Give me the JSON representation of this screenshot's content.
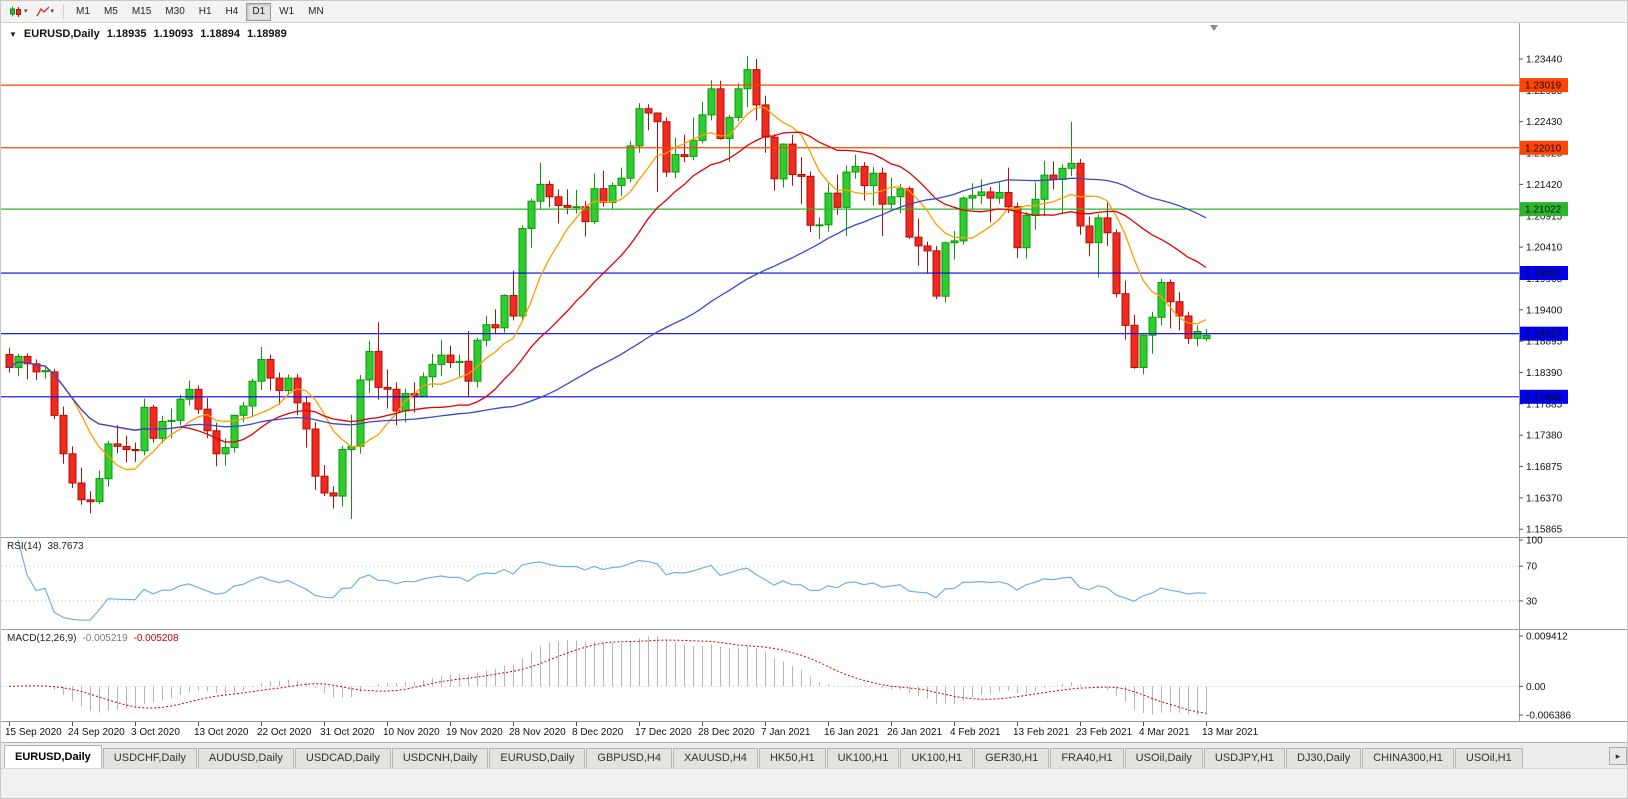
{
  "toolbar": {
    "timeframes": [
      {
        "label": "M1",
        "active": false
      },
      {
        "label": "M5",
        "active": false
      },
      {
        "label": "M15",
        "active": false
      },
      {
        "label": "M30",
        "active": false
      },
      {
        "label": "H1",
        "active": false
      },
      {
        "label": "H4",
        "active": false
      },
      {
        "label": "D1",
        "active": true
      },
      {
        "label": "W1",
        "active": false
      },
      {
        "label": "MN",
        "active": false
      }
    ]
  },
  "chart_title": {
    "symbol": "EURUSD,Daily",
    "open": "1.18935",
    "high": "1.19093",
    "low": "1.18894",
    "close": "1.18989"
  },
  "rsi": {
    "name": "RSI(14)",
    "value": "38.7673",
    "period": 14,
    "levels": [
      "100",
      "70",
      "30"
    ],
    "color": "#6fb1e3"
  },
  "macd": {
    "name": "MACD(12,26,9)",
    "main_value": "-0.005219",
    "signal_value": "-0.005208",
    "axis_labels": [
      "0.009412",
      "0.00",
      "-0.006386"
    ],
    "fast": 12,
    "slow": 26,
    "signal": 9,
    "histogram_color": "#b6b6b6",
    "signal_color": "#d40000"
  },
  "price_axis_ticks": [
    "1.23440",
    "1.22935",
    "1.22430",
    "1.21925",
    "1.21420",
    "1.20915",
    "1.20410",
    "1.19905",
    "1.19400",
    "1.18895",
    "1.18390",
    "1.17885",
    "1.17380",
    "1.16875",
    "1.16370",
    "1.15865"
  ],
  "hlines": [
    {
      "price": "1.23019",
      "color": "#ff4500"
    },
    {
      "price": "1.22010",
      "color": "#ff4500"
    },
    {
      "price": "1.21022",
      "color": "#2eb52e"
    },
    {
      "price": "1.19992",
      "color": "#0000ee"
    },
    {
      "price": "1.19015",
      "color": "#0000ee"
    },
    {
      "price": "1.17998",
      "color": "#0000ee"
    }
  ],
  "chart_data": {
    "type": "candlestick",
    "symbol": "EURUSD",
    "timeframe": "Daily",
    "price_range": {
      "top": 1.2402,
      "bottom": 1.1574
    },
    "up_color": "#2fcc2f",
    "up_border": "#0b9a0b",
    "down_color": "#f02a1e",
    "down_border": "#b50e05",
    "moving_averages": [
      {
        "period": 8,
        "color": "#ff9c00"
      },
      {
        "period": 20,
        "color": "#e00000"
      },
      {
        "period": 55,
        "color": "#3a49c8"
      }
    ],
    "x_labels": [
      {
        "i": 0,
        "t": "15 Sep 2020"
      },
      {
        "i": 7,
        "t": "24 Sep 2020"
      },
      {
        "i": 14,
        "t": "3 Oct 2020"
      },
      {
        "i": 21,
        "t": "13 Oct 2020"
      },
      {
        "i": 28,
        "t": "22 Oct 2020"
      },
      {
        "i": 35,
        "t": "31 Oct 2020"
      },
      {
        "i": 42,
        "t": "10 Nov 2020"
      },
      {
        "i": 49,
        "t": "19 Nov 2020"
      },
      {
        "i": 56,
        "t": "28 Nov 2020"
      },
      {
        "i": 63,
        "t": "8 Dec 2020"
      },
      {
        "i": 70,
        "t": "17 Dec 2020"
      },
      {
        "i": 77,
        "t": "28 Dec 2020"
      },
      {
        "i": 84,
        "t": "7 Jan 2021"
      },
      {
        "i": 91,
        "t": "16 Jan 2021"
      },
      {
        "i": 98,
        "t": "26 Jan 2021"
      },
      {
        "i": 105,
        "t": "4 Feb 2021"
      },
      {
        "i": 112,
        "t": "13 Feb 2021"
      },
      {
        "i": 119,
        "t": "23 Feb 2021"
      },
      {
        "i": 126,
        "t": "4 Mar 2021"
      },
      {
        "i": 133,
        "t": "13 Mar 2021"
      }
    ],
    "candles": [
      [
        1.1868,
        1.1878,
        1.1839,
        1.1847
      ],
      [
        1.1847,
        1.1869,
        1.1833,
        1.1865
      ],
      [
        1.1865,
        1.187,
        1.1828,
        1.1853
      ],
      [
        1.1853,
        1.186,
        1.1827,
        1.184
      ],
      [
        1.184,
        1.185,
        1.1829,
        1.1842
      ],
      [
        1.184,
        1.1845,
        1.1764,
        1.177
      ],
      [
        1.177,
        1.1784,
        1.1692,
        1.1708
      ],
      [
        1.1708,
        1.172,
        1.1653,
        1.1661
      ],
      [
        1.1661,
        1.1686,
        1.1626,
        1.1634
      ],
      [
        1.1634,
        1.1648,
        1.1612,
        1.1631
      ],
      [
        1.1631,
        1.1681,
        1.1627,
        1.1668
      ],
      [
        1.1668,
        1.1729,
        1.1655,
        1.1724
      ],
      [
        1.1724,
        1.1754,
        1.1709,
        1.172
      ],
      [
        1.172,
        1.1737,
        1.1694,
        1.1715
      ],
      [
        1.1715,
        1.1726,
        1.1695,
        1.1713
      ],
      [
        1.1713,
        1.1797,
        1.1706,
        1.1783
      ],
      [
        1.1783,
        1.1787,
        1.1726,
        1.1733
      ],
      [
        1.1733,
        1.1769,
        1.1725,
        1.176
      ],
      [
        1.176,
        1.1781,
        1.1733,
        1.1762
      ],
      [
        1.1762,
        1.1803,
        1.1754,
        1.1796
      ],
      [
        1.1796,
        1.1826,
        1.1786,
        1.1812
      ],
      [
        1.1812,
        1.1818,
        1.1772,
        1.178
      ],
      [
        1.178,
        1.1798,
        1.1733,
        1.1745
      ],
      [
        1.1745,
        1.1758,
        1.1688,
        1.1708
      ],
      [
        1.1708,
        1.1733,
        1.1689,
        1.1718
      ],
      [
        1.1718,
        1.1771,
        1.171,
        1.177
      ],
      [
        1.177,
        1.1792,
        1.1759,
        1.1785
      ],
      [
        1.1785,
        1.1829,
        1.1769,
        1.1825
      ],
      [
        1.1825,
        1.188,
        1.1811,
        1.186
      ],
      [
        1.186,
        1.1868,
        1.181,
        1.183
      ],
      [
        1.183,
        1.1839,
        1.1787,
        1.181
      ],
      [
        1.181,
        1.1836,
        1.1802,
        1.183
      ],
      [
        1.183,
        1.1837,
        1.177,
        1.179
      ],
      [
        1.179,
        1.1801,
        1.1718,
        1.1748
      ],
      [
        1.1748,
        1.1759,
        1.165,
        1.1672
      ],
      [
        1.1672,
        1.169,
        1.164,
        1.1645
      ],
      [
        1.1645,
        1.1656,
        1.162,
        1.164
      ],
      [
        1.164,
        1.1721,
        1.1623,
        1.1715
      ],
      [
        1.1715,
        1.1771,
        1.1603,
        1.172
      ],
      [
        1.172,
        1.1835,
        1.1708,
        1.1827
      ],
      [
        1.1827,
        1.189,
        1.1806,
        1.1873
      ],
      [
        1.1873,
        1.192,
        1.1795,
        1.1815
      ],
      [
        1.1815,
        1.1844,
        1.1781,
        1.1812
      ],
      [
        1.1812,
        1.1823,
        1.1754,
        1.1777
      ],
      [
        1.1777,
        1.1813,
        1.1759,
        1.1805
      ],
      [
        1.1805,
        1.1823,
        1.1774,
        1.18
      ],
      [
        1.18,
        1.1839,
        1.1799,
        1.1832
      ],
      [
        1.1832,
        1.1869,
        1.1815,
        1.1852
      ],
      [
        1.1852,
        1.1891,
        1.1833,
        1.1867
      ],
      [
        1.1867,
        1.1882,
        1.1846,
        1.1855
      ],
      [
        1.1855,
        1.1868,
        1.1832,
        1.1857
      ],
      [
        1.1857,
        1.1906,
        1.18,
        1.1825
      ],
      [
        1.1825,
        1.1895,
        1.1815,
        1.1891
      ],
      [
        1.1891,
        1.193,
        1.1881,
        1.1916
      ],
      [
        1.1916,
        1.1941,
        1.1901,
        1.1911
      ],
      [
        1.1911,
        1.1965,
        1.1903,
        1.1963
      ],
      [
        1.1963,
        1.2003,
        1.1923,
        1.193
      ],
      [
        1.193,
        1.2076,
        1.1924,
        1.2071
      ],
      [
        1.2071,
        1.2119,
        1.204,
        1.2115
      ],
      [
        1.2115,
        1.2177,
        1.2102,
        1.2142
      ],
      [
        1.2142,
        1.2148,
        1.2105,
        1.2122
      ],
      [
        1.2122,
        1.2134,
        1.2079,
        1.2108
      ],
      [
        1.2108,
        1.2134,
        1.2094,
        1.2105
      ],
      [
        1.2105,
        1.2133,
        1.2095,
        1.2106
      ],
      [
        1.2106,
        1.2115,
        1.2058,
        1.2082
      ],
      [
        1.2082,
        1.216,
        1.2078,
        1.2135
      ],
      [
        1.2135,
        1.2164,
        1.2106,
        1.2113
      ],
      [
        1.2113,
        1.2145,
        1.2102,
        1.214
      ],
      [
        1.214,
        1.2169,
        1.2123,
        1.2152
      ],
      [
        1.2152,
        1.2212,
        1.2145,
        1.2204
      ],
      [
        1.2204,
        1.2273,
        1.2193,
        1.2264
      ],
      [
        1.2264,
        1.2271,
        1.2229,
        1.2257
      ],
      [
        1.2257,
        1.2258,
        1.213,
        1.2243
      ],
      [
        1.2243,
        1.225,
        1.2154,
        1.2162
      ],
      [
        1.2162,
        1.2217,
        1.2152,
        1.219
      ],
      [
        1.219,
        1.2222,
        1.2178,
        1.2187
      ],
      [
        1.2187,
        1.225,
        1.2181,
        1.2213
      ],
      [
        1.2213,
        1.2275,
        1.2208,
        1.2254
      ],
      [
        1.2254,
        1.231,
        1.2245,
        1.2296
      ],
      [
        1.2296,
        1.2309,
        1.2214,
        1.2216
      ],
      [
        1.2216,
        1.2254,
        1.2178,
        1.225
      ],
      [
        1.225,
        1.2305,
        1.2244,
        1.2296
      ],
      [
        1.2296,
        1.2349,
        1.2266,
        1.2327
      ],
      [
        1.2327,
        1.2344,
        1.2245,
        1.227
      ],
      [
        1.227,
        1.2285,
        1.2193,
        1.2218
      ],
      [
        1.2218,
        1.2223,
        1.2132,
        1.2151
      ],
      [
        1.2151,
        1.2208,
        1.2137,
        1.2207
      ],
      [
        1.2207,
        1.2222,
        1.214,
        1.2158
      ],
      [
        1.2158,
        1.2186,
        1.211,
        1.2155
      ],
      [
        1.2155,
        1.2163,
        1.2065,
        1.2076
      ],
      [
        1.2076,
        1.2089,
        1.2054,
        1.2077
      ],
      [
        1.2077,
        1.2145,
        1.2066,
        1.2128
      ],
      [
        1.2128,
        1.2158,
        1.2093,
        1.2105
      ],
      [
        1.2105,
        1.2173,
        1.2059,
        1.2162
      ],
      [
        1.2162,
        1.219,
        1.2151,
        1.2171
      ],
      [
        1.2171,
        1.2178,
        1.2116,
        1.214
      ],
      [
        1.214,
        1.217,
        1.2108,
        1.216
      ],
      [
        1.216,
        1.2169,
        1.2059,
        1.211
      ],
      [
        1.211,
        1.2153,
        1.2102,
        1.2122
      ],
      [
        1.2122,
        1.2143,
        1.2096,
        1.2135
      ],
      [
        1.2135,
        1.2139,
        1.2054,
        1.2057
      ],
      [
        1.2057,
        1.2087,
        1.2011,
        1.2043
      ],
      [
        1.2043,
        1.205,
        1.1998,
        1.2035
      ],
      [
        1.2035,
        1.2043,
        1.1957,
        1.1962
      ],
      [
        1.1962,
        1.205,
        1.1952,
        1.2048
      ],
      [
        1.2048,
        1.2067,
        1.2021,
        1.2051
      ],
      [
        1.2051,
        1.2123,
        1.2045,
        1.212
      ],
      [
        1.212,
        1.2144,
        1.2101,
        1.2124
      ],
      [
        1.2124,
        1.215,
        1.211,
        1.213
      ],
      [
        1.213,
        1.2138,
        1.2081,
        1.212
      ],
      [
        1.212,
        1.2145,
        1.2111,
        1.2129
      ],
      [
        1.2129,
        1.2169,
        1.2096,
        1.2106
      ],
      [
        1.2106,
        1.2113,
        1.2023,
        1.204
      ],
      [
        1.204,
        1.2097,
        1.2022,
        1.2092
      ],
      [
        1.2092,
        1.2145,
        1.2069,
        1.2118
      ],
      [
        1.2118,
        1.218,
        1.2091,
        1.2157
      ],
      [
        1.2157,
        1.2179,
        1.2134,
        1.215
      ],
      [
        1.215,
        1.2174,
        1.2096,
        1.2168
      ],
      [
        1.2168,
        1.2243,
        1.2155,
        1.2176
      ],
      [
        1.2176,
        1.2183,
        1.2061,
        1.2075
      ],
      [
        1.2075,
        1.209,
        1.2026,
        1.2048
      ],
      [
        1.2048,
        1.2094,
        1.1992,
        1.2088
      ],
      [
        1.2088,
        1.2113,
        1.2043,
        1.2064
      ],
      [
        1.2064,
        1.207,
        1.196,
        1.1966
      ],
      [
        1.1966,
        1.1987,
        1.1892,
        1.1915
      ],
      [
        1.1915,
        1.1932,
        1.1845,
        1.1847
      ],
      [
        1.1847,
        1.19,
        1.1836,
        1.1899
      ],
      [
        1.1899,
        1.1937,
        1.1869,
        1.1928
      ],
      [
        1.1928,
        1.199,
        1.1915,
        1.1984
      ],
      [
        1.1984,
        1.1989,
        1.191,
        1.1953
      ],
      [
        1.1953,
        1.1968,
        1.1907,
        1.193
      ],
      [
        1.193,
        1.1937,
        1.1885,
        1.1894
      ],
      [
        1.1894,
        1.1915,
        1.1881,
        1.1905
      ],
      [
        1.18935,
        1.19093,
        1.18894,
        1.18989
      ]
    ]
  },
  "tabs": [
    {
      "label": "EURUSD,Daily",
      "active": true
    },
    {
      "label": "USDCHF,Daily",
      "active": false
    },
    {
      "label": "AUDUSD,Daily",
      "active": false
    },
    {
      "label": "USDCAD,Daily",
      "active": false
    },
    {
      "label": "USDCNH,Daily",
      "active": false
    },
    {
      "label": "EURUSD,Daily",
      "active": false
    },
    {
      "label": "GBPUSD,H4",
      "active": false
    },
    {
      "label": "XAUUSD,H4",
      "active": false
    },
    {
      "label": "HK50,H1",
      "active": false
    },
    {
      "label": "UK100,H1",
      "active": false
    },
    {
      "label": "UK100,H1",
      "active": false
    },
    {
      "label": "GER30,H1",
      "active": false
    },
    {
      "label": "FRA40,H1",
      "active": false
    },
    {
      "label": "USOil,Daily",
      "active": false
    },
    {
      "label": "USDJPY,H1",
      "active": false
    },
    {
      "label": "DJ30,Daily",
      "active": false
    },
    {
      "label": "CHINA300,H1",
      "active": false
    },
    {
      "label": "USOil,H1",
      "active": false
    }
  ]
}
